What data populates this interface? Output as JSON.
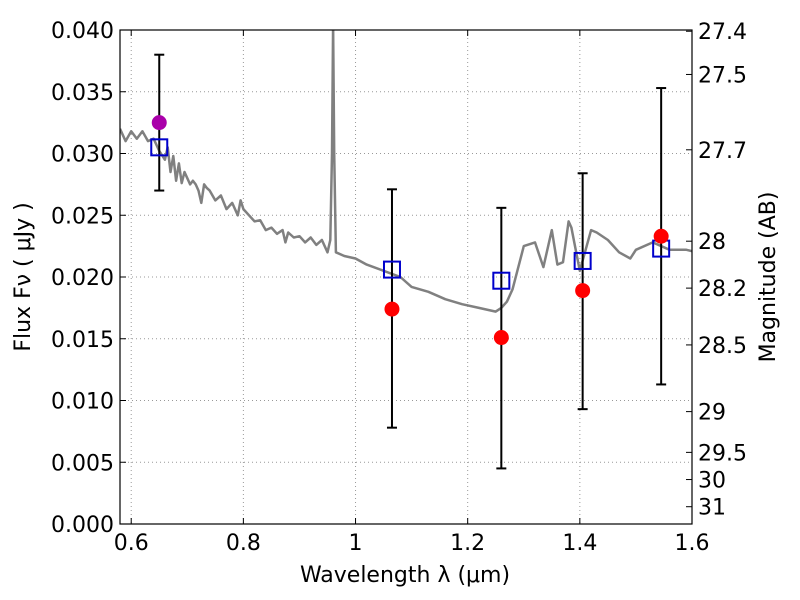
{
  "chart_data": {
    "type": "scatter",
    "xlabel": "Wavelength  λ (μm)",
    "ylabel": "Flux  Fν  ( μJy )",
    "y2label": "Magnitude (AB)",
    "xlim": [
      0.58,
      1.6
    ],
    "ylim": [
      0.0,
      0.04
    ],
    "grid": true,
    "x_ticks": [
      0.6,
      0.8,
      1.0,
      1.2,
      1.4,
      1.6
    ],
    "x_tick_labels": [
      "0.6",
      "0.8",
      "1",
      "1.2",
      "1.4",
      "1.6"
    ],
    "y_ticks": [
      0.0,
      0.005,
      0.01,
      0.015,
      0.02,
      0.025,
      0.03,
      0.035,
      0.04
    ],
    "y_tick_labels": [
      "0.000",
      "0.005",
      "0.010",
      "0.015",
      "0.020",
      "0.025",
      "0.030",
      "0.035",
      "0.040"
    ],
    "mag_ticks": [
      {
        "label": "27.4",
        "flux": 0.0399
      },
      {
        "label": "27.5",
        "flux": 0.0364
      },
      {
        "label": "27.7",
        "flux": 0.0303
      },
      {
        "label": "28",
        "flux": 0.0229
      },
      {
        "label": "28.2",
        "flux": 0.0191
      },
      {
        "label": "28.5",
        "flux": 0.0145
      },
      {
        "label": "29",
        "flux": 0.0091
      },
      {
        "label": "29.5",
        "flux": 0.0058
      },
      {
        "label": "30",
        "flux": 0.0036
      },
      {
        "label": "31",
        "flux": 0.0014
      }
    ],
    "series": [
      {
        "kind": "line",
        "color": "#808080",
        "x": [
          0.58,
          0.59,
          0.6,
          0.61,
          0.62,
          0.63,
          0.64,
          0.65,
          0.66,
          0.665,
          0.67,
          0.675,
          0.68,
          0.685,
          0.69,
          0.695,
          0.7,
          0.705,
          0.71,
          0.715,
          0.72,
          0.725,
          0.73,
          0.735,
          0.74,
          0.75,
          0.76,
          0.77,
          0.78,
          0.79,
          0.795,
          0.8,
          0.81,
          0.82,
          0.83,
          0.84,
          0.85,
          0.86,
          0.87,
          0.875,
          0.88,
          0.89,
          0.9,
          0.91,
          0.92,
          0.93,
          0.94,
          0.95,
          0.955,
          0.958,
          0.96,
          0.962,
          0.965,
          0.98,
          1.0,
          1.02,
          1.05,
          1.08,
          1.1,
          1.13,
          1.16,
          1.19,
          1.22,
          1.25,
          1.26,
          1.27,
          1.28,
          1.3,
          1.32,
          1.335,
          1.35,
          1.36,
          1.37,
          1.38,
          1.385,
          1.4,
          1.42,
          1.43,
          1.45,
          1.47,
          1.49,
          1.5,
          1.53,
          1.56,
          1.59,
          1.6
        ],
        "y": [
          0.032,
          0.031,
          0.0318,
          0.0312,
          0.0318,
          0.031,
          0.0312,
          0.0302,
          0.0295,
          0.0305,
          0.0285,
          0.0298,
          0.0278,
          0.0292,
          0.0276,
          0.0285,
          0.028,
          0.0275,
          0.0278,
          0.0275,
          0.027,
          0.026,
          0.0275,
          0.0272,
          0.027,
          0.0262,
          0.0266,
          0.0255,
          0.026,
          0.025,
          0.0262,
          0.0255,
          0.025,
          0.0245,
          0.0246,
          0.0238,
          0.024,
          0.0235,
          0.0238,
          0.0228,
          0.0236,
          0.0232,
          0.0233,
          0.0228,
          0.0232,
          0.0226,
          0.023,
          0.022,
          0.023,
          0.03,
          0.0405,
          0.03,
          0.022,
          0.0217,
          0.0215,
          0.021,
          0.0205,
          0.02,
          0.0192,
          0.0188,
          0.0182,
          0.0178,
          0.0175,
          0.0172,
          0.0175,
          0.018,
          0.019,
          0.0225,
          0.0228,
          0.0208,
          0.0238,
          0.021,
          0.0212,
          0.0245,
          0.024,
          0.0205,
          0.0238,
          0.0236,
          0.023,
          0.022,
          0.0215,
          0.0222,
          0.0228,
          0.0222,
          0.0222,
          0.0221
        ]
      },
      {
        "kind": "errorbar",
        "color": "#000000",
        "x": [
          0.65,
          1.065,
          1.26,
          1.405,
          1.545
        ],
        "low": [
          0.027,
          0.0078,
          0.0045,
          0.0093,
          0.0113
        ],
        "high": [
          0.038,
          0.0271,
          0.0256,
          0.0284,
          0.0353
        ]
      },
      {
        "kind": "square",
        "color": "#0000cc",
        "x": [
          0.65,
          1.065,
          1.26,
          1.405,
          1.545
        ],
        "y": [
          0.0305,
          0.0206,
          0.0197,
          0.0213,
          0.0223
        ]
      },
      {
        "kind": "circle",
        "color": "#ff0000",
        "x": [
          1.065,
          1.26,
          1.405,
          1.545
        ],
        "y": [
          0.0174,
          0.0151,
          0.0189,
          0.0233
        ]
      },
      {
        "kind": "circle",
        "color": "#aa00aa",
        "x": [
          0.65
        ],
        "y": [
          0.0325
        ]
      }
    ]
  }
}
